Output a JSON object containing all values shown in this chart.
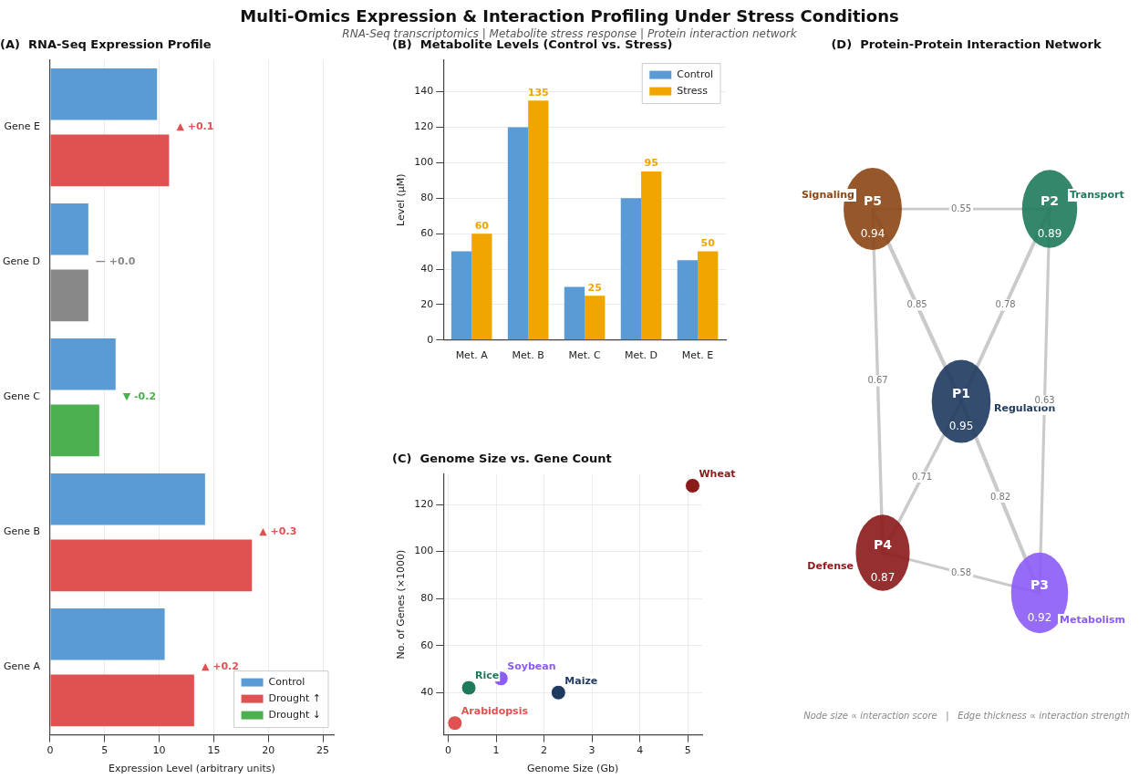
{
  "chart_data": [
    {
      "type": "other",
      "title": "Multi-Omics Expression & Interaction Profiling Under Stress Conditions",
      "subtitle": "RNA-Seq transcriptomics  |  Metabolite stress response  |  Protein interaction network"
    },
    {
      "type": "bar",
      "orientation": "horizontal",
      "title": "(A)  RNA-Seq Expression Profile",
      "xlabel": "Expression Level (arbitrary units)",
      "categories": [
        "Gene E",
        "Gene D",
        "Gene C",
        "Gene B",
        "Gene A"
      ],
      "series": [
        {
          "name": "Control",
          "color": "#5b9bd5",
          "values": [
            9.8,
            3.5,
            6,
            14.2,
            10.5
          ]
        },
        {
          "name": "Drought ↑",
          "color": "#e05252",
          "values": [
            10.9,
            null,
            null,
            18.5,
            13.2
          ]
        },
        {
          "name": "Drought ↓",
          "color": "#4caf50",
          "values": [
            null,
            null,
            4.5,
            null,
            null
          ]
        },
        {
          "color": "#888888",
          "values": [
            null,
            3.5,
            null,
            null,
            null
          ]
        }
      ],
      "annotations": [
        "▲ +0.1",
        "— +0.0",
        "▼ -0.2",
        "▲ +0.3",
        "▲ +0.2"
      ],
      "xlim": [
        0,
        26
      ],
      "xticks": [
        0,
        5,
        10,
        15,
        20,
        25
      ],
      "grid": "x",
      "legend": "bottom right"
    },
    {
      "type": "bar",
      "title": "(B)  Metabolite Levels (Control vs. Stress)",
      "ylabel": "Level (µM)",
      "categories": [
        "Met. A",
        "Met. B",
        "Met. C",
        "Met. D",
        "Met. E"
      ],
      "series": [
        {
          "name": "Control",
          "color": "#5b9bd5",
          "values": [
            50,
            120,
            30,
            80,
            45
          ]
        },
        {
          "name": "Stress",
          "color": "#f0a500",
          "values": [
            60,
            135,
            25,
            95,
            50
          ],
          "value_labels": [
            "60",
            "135",
            "25",
            "95",
            "50"
          ]
        }
      ],
      "ylim": [
        0,
        158
      ],
      "yticks": [
        0,
        20,
        40,
        60,
        80,
        100,
        120,
        140
      ],
      "grid": "y",
      "legend": "top right"
    },
    {
      "type": "scatter",
      "title": "(C)  Genome Size vs. Gene Count",
      "xlabel": "Genome Size (Gb)",
      "ylabel": "No. of Genes (×1000)",
      "x": [
        0.14,
        0.43,
        1.1,
        2.3,
        5.1
      ],
      "values": [
        27,
        42,
        46,
        40,
        128
      ],
      "colors": [
        "#e05252",
        "#1f7a5c",
        "#8b5cf6",
        "#1e3a5f",
        "#8b1a1a"
      ],
      "annotations": [
        {
          "text": "Arabidopsis",
          "x": 0.14,
          "y": 27
        },
        {
          "text": "Rice",
          "x": 0.43,
          "y": 42
        },
        {
          "text": "Soybean",
          "x": 1.1,
          "y": 46
        },
        {
          "text": "Maize",
          "x": 2.3,
          "y": 40
        },
        {
          "text": "Wheat",
          "x": 5.1,
          "y": 128
        }
      ],
      "xlim": [
        -0.1,
        5.3
      ],
      "xticks": [
        0,
        1,
        2,
        3,
        4,
        5
      ],
      "ylim": [
        22,
        133
      ],
      "yticks": [
        40,
        60,
        80,
        100,
        120
      ],
      "grid": true
    },
    {
      "type": "other",
      "title": "(D)  Protein-Protein Interaction Network",
      "categories": [
        "P1",
        "P2",
        "P3",
        "P4",
        "P5"
      ],
      "values": [
        0.95,
        0.89,
        0.92,
        0.87,
        0.94
      ],
      "colors": [
        "#1e3a5f",
        "#1f7a5c",
        "#8b5cf6",
        "#8b1a1a",
        "#8b4513"
      ],
      "data_labels": true,
      "annotations": [
        {
          "text": "Regulation",
          "x": "P1"
        },
        {
          "text": "Transport",
          "x": "P2"
        },
        {
          "text": "Metabolism",
          "x": "P3"
        },
        {
          "text": "Defense",
          "x": "P4"
        },
        {
          "text": "Signaling",
          "x": "P5"
        },
        {
          "text": "0.55",
          "x": "P5",
          "y": "P2"
        },
        {
          "text": "0.85",
          "x": "P5",
          "y": "P1"
        },
        {
          "text": "0.78",
          "x": "P2",
          "y": "P1"
        },
        {
          "text": "0.67",
          "x": "P5",
          "y": "P4"
        },
        {
          "text": "0.63",
          "x": "P2",
          "y": "P3"
        },
        {
          "text": "0.71",
          "x": "P1",
          "y": "P4"
        },
        {
          "text": "0.82",
          "x": "P1",
          "y": "P3"
        },
        {
          "text": "0.58",
          "x": "P4",
          "y": "P3"
        },
        "Node size ∝ interaction score   |   Edge thickness ∝ interaction strength"
      ]
    }
  ]
}
